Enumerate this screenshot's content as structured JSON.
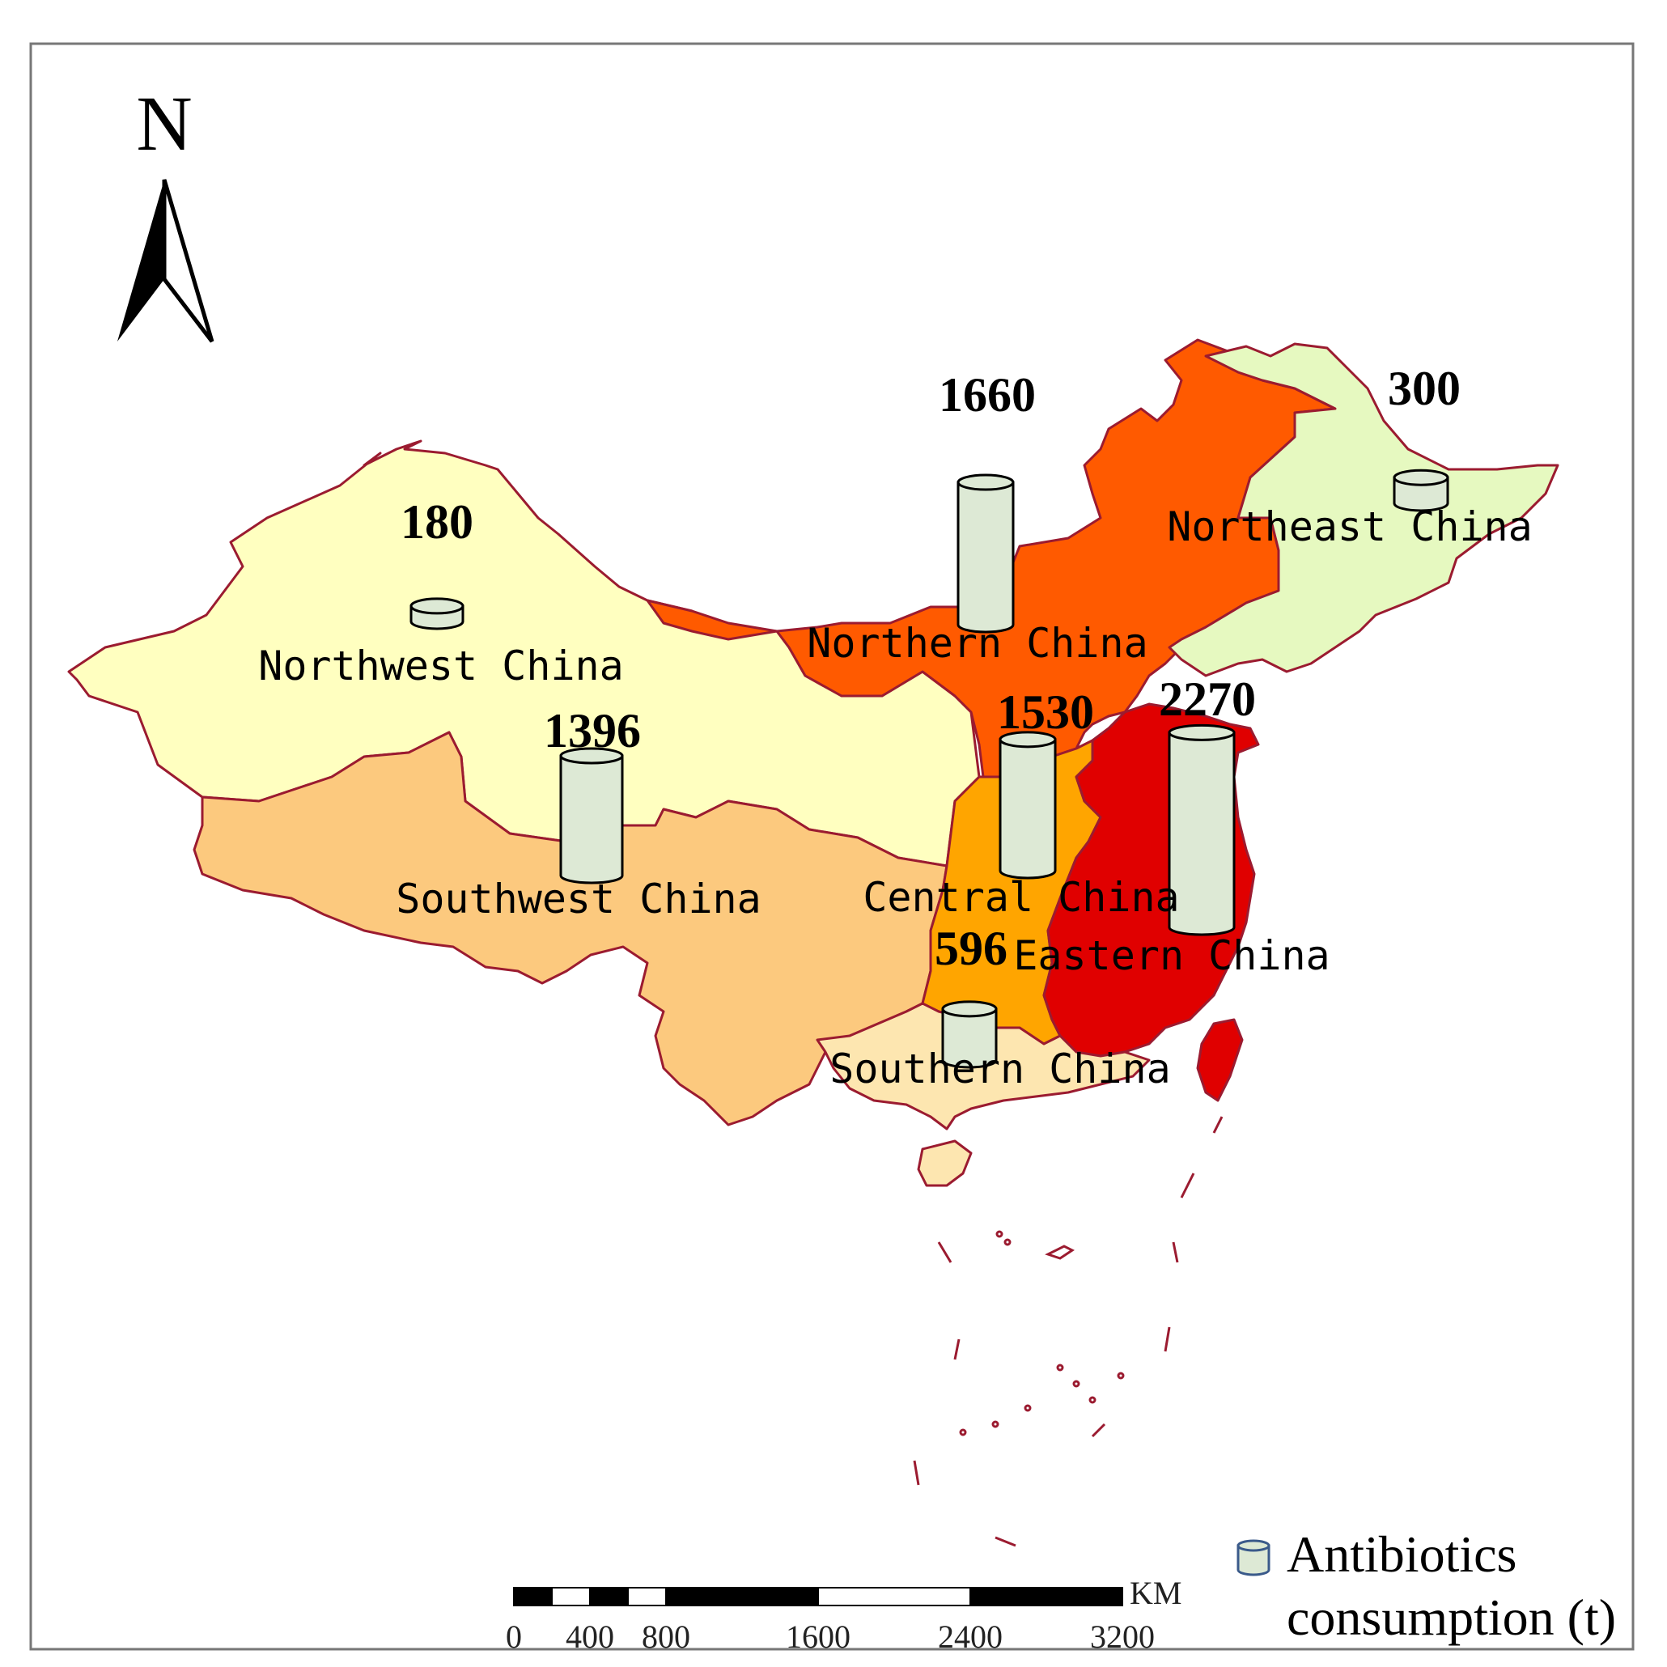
{
  "map": {
    "north_label": "N",
    "legend": {
      "label_line1": "Antibiotics",
      "label_line2": "consumption (t)"
    },
    "scale": {
      "unit": "KM",
      "ticks": [
        "0",
        "400",
        "800",
        "1600",
        "2400",
        "3200"
      ]
    },
    "regions": [
      {
        "id": "northwest",
        "name": "Northwest China",
        "value": 180,
        "value_text": "180",
        "color": "#ffffc0"
      },
      {
        "id": "northern",
        "name": "Northern China",
        "value": 1660,
        "value_text": "1660",
        "color": "#ff5a00"
      },
      {
        "id": "northeast",
        "name": "Northeast China",
        "value": 300,
        "value_text": "300",
        "color": "#e6f9c0"
      },
      {
        "id": "southwest",
        "name": "Southwest China",
        "value": 1396,
        "value_text": "1396",
        "color": "#fcc97e"
      },
      {
        "id": "central",
        "name": "Central China",
        "value": 1530,
        "value_text": "1530",
        "color": "#ffa500"
      },
      {
        "id": "eastern",
        "name": "Eastern China",
        "value": 2270,
        "value_text": "2270",
        "color": "#e00000"
      },
      {
        "id": "southern",
        "name": "Southern China",
        "value": 596,
        "value_text": "596",
        "color": "#fde6b0"
      }
    ],
    "cylinder_fill": "#dde9d5",
    "border_color": "#9b1b30"
  }
}
